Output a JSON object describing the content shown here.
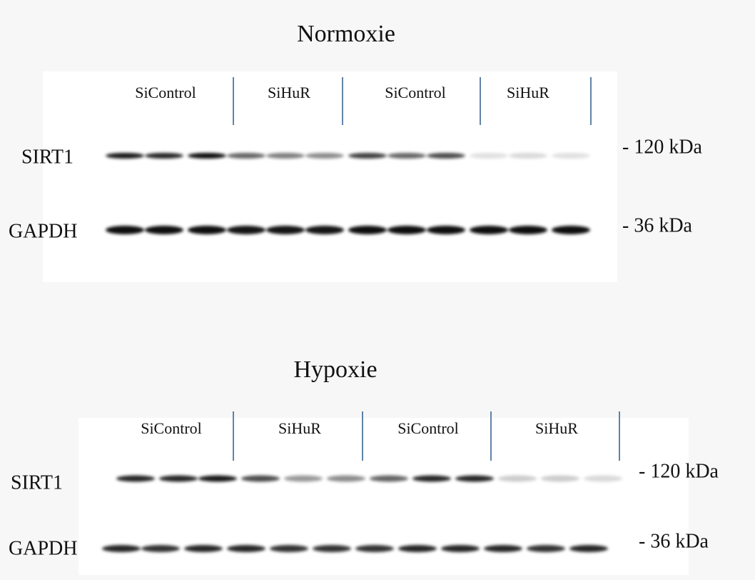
{
  "panels": [
    {
      "title": "Normoxie",
      "groups": [
        "SiControl",
        "SiHuR",
        "SiControl",
        "SiHuR"
      ],
      "rows": [
        {
          "label": "SIRT1",
          "marker": "- 120 kDa"
        },
        {
          "label": "GAPDH",
          "marker": "- 36 kDa"
        }
      ]
    },
    {
      "title": "Hypoxie",
      "groups": [
        "SiControl",
        "SiHuR",
        "SiControl",
        "SiHuR"
      ],
      "rows": [
        {
          "label": "SIRT1",
          "marker": "- 120 kDa"
        },
        {
          "label": "GAPDH",
          "marker": "- 36 kDa"
        }
      ]
    }
  ]
}
